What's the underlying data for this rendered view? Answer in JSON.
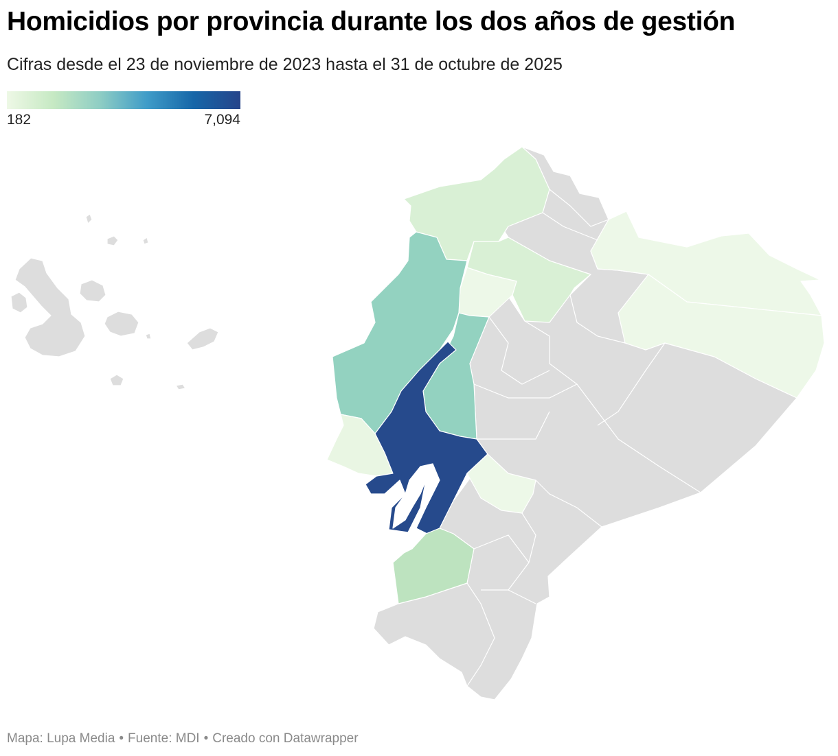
{
  "header": {
    "title": "Homicidios por provincia durante los dos años de gestión",
    "subtitle": "Cifras desde el 23 de noviembre de 2023 hasta el 31 de octubre de 2025"
  },
  "legend": {
    "min_label": "182",
    "max_label": "7,094",
    "min_value": 182,
    "max_value": 7094,
    "gradient_colors": [
      "#eef8e6",
      "#c6e9c3",
      "#8ecdc4",
      "#3f9cc8",
      "#1666a8",
      "#26448a"
    ]
  },
  "map": {
    "no_data_color": "#dddddd",
    "regions": [
      {
        "id": "guayas",
        "level": "highest",
        "color": "#264a8c"
      },
      {
        "id": "manabi",
        "level": "mid",
        "color": "#93d2c0"
      },
      {
        "id": "los-rios",
        "level": "mid",
        "color": "#93d2c0"
      },
      {
        "id": "el-oro",
        "level": "low-mid",
        "color": "#bde3bf"
      },
      {
        "id": "esmeraldas",
        "level": "low",
        "color": "#d9f0d5"
      },
      {
        "id": "pichincha",
        "level": "low",
        "color": "#d9f0d5"
      },
      {
        "id": "santo-domingo",
        "level": "lowest",
        "color": "#edf8e8"
      },
      {
        "id": "santa-elena",
        "level": "lowest",
        "color": "#e9f6e3"
      },
      {
        "id": "sucumbios",
        "level": "lowest",
        "color": "#edf8e8"
      },
      {
        "id": "orellana",
        "level": "lowest",
        "color": "#edf8e8"
      },
      {
        "id": "canar",
        "level": "lowest",
        "color": "#edf8e8"
      }
    ]
  },
  "footer": {
    "map_credit": "Mapa: Lupa Media",
    "source": "Fuente: MDI",
    "tool": "Creado con Datawrapper",
    "separator": "•"
  }
}
